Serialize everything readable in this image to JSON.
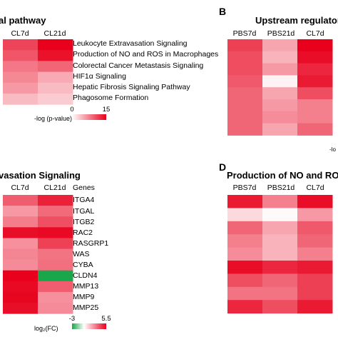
{
  "chart_data": [
    {
      "panel": "A",
      "type": "heatmap",
      "title": "al pathway",
      "columns": [
        "CL7d",
        "CL21d"
      ],
      "rows": [
        "Leukocyte Extravasation Signaling",
        "Production of NO and ROS in Macrophages",
        "Colorectal Cancer Metastasis Signaling",
        "HIF1α Signaling",
        "Hepatic Fibrosis Signaling Pathway",
        "Phagosome Formation"
      ],
      "values": [
        [
          11,
          15
        ],
        [
          10,
          14
        ],
        [
          8,
          9
        ],
        [
          7,
          5
        ],
        [
          6,
          4
        ],
        [
          4,
          3
        ]
      ],
      "legend": {
        "label": "-log (p-value)",
        "min": 0,
        "max": 15,
        "min_label": "0",
        "max_label": "15",
        "low_color": "#ffffff",
        "high_color": "#e8001c"
      }
    },
    {
      "panel": "B",
      "type": "heatmap",
      "title": "Upstream regulator",
      "columns": [
        "PBS7d",
        "PBS21d",
        "CL7d"
      ],
      "values": [
        [
          0.75,
          0.35,
          1.0
        ],
        [
          0.7,
          0.3,
          0.95
        ],
        [
          0.7,
          0.4,
          0.85
        ],
        [
          0.65,
          0.05,
          0.9
        ],
        [
          0.6,
          0.35,
          0.7
        ],
        [
          0.6,
          0.4,
          0.5
        ],
        [
          0.6,
          0.45,
          0.5
        ],
        [
          0.6,
          0.35,
          0.6
        ]
      ],
      "legend_label": "-lo"
    },
    {
      "panel": "C",
      "type": "heatmap",
      "title": "vasation Signaling",
      "columns": [
        "CL7d",
        "CL21d"
      ],
      "rows_header": "Genes",
      "rows": [
        "ITGA4",
        "ITGAL",
        "ITGB2",
        "RAC2",
        "RASGRP1",
        "WAS",
        "CYBA",
        "CLDN4",
        "MMP13",
        "MMP9",
        "MMP25"
      ],
      "values": [
        [
          3.5,
          4.8
        ],
        [
          2.2,
          3.2
        ],
        [
          2.8,
          3.8
        ],
        [
          5.2,
          5.3
        ],
        [
          2.4,
          4.1
        ],
        [
          2.6,
          3.0
        ],
        [
          2.5,
          3.1
        ],
        [
          5.5,
          -3.0
        ],
        [
          5.3,
          3.5
        ],
        [
          5.4,
          2.4
        ],
        [
          5.2,
          2.5
        ]
      ],
      "legend": {
        "label": "log₂(FC)",
        "min": -3,
        "max": 5.5,
        "min_label": "-3",
        "max_label": "5.5",
        "low_color": "#1aa64a",
        "mid_color": "#ffffff",
        "high_color": "#e8001c"
      }
    },
    {
      "panel": "D",
      "type": "heatmap",
      "title": "Production of NO and ROS",
      "columns": [
        "PBS7d",
        "PBS21d",
        "CL7d"
      ],
      "values": [
        [
          0.9,
          0.5,
          0.95
        ],
        [
          0.15,
          0.02,
          0.4
        ],
        [
          0.6,
          0.35,
          0.65
        ],
        [
          0.5,
          0.3,
          0.6
        ],
        [
          0.45,
          0.3,
          0.5
        ],
        [
          0.95,
          0.85,
          0.9
        ],
        [
          0.7,
          0.6,
          0.75
        ],
        [
          0.55,
          0.55,
          0.75
        ],
        [
          0.85,
          0.7,
          0.9
        ]
      ]
    }
  ]
}
